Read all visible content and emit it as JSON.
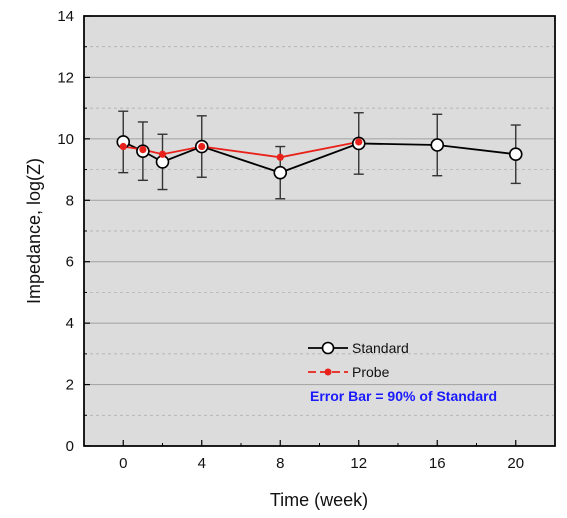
{
  "chart_data": {
    "type": "line",
    "title": "",
    "xlabel": "Time (week)",
    "ylabel": "Impedance, log(Z)",
    "xlim": [
      -2,
      22
    ],
    "ylim": [
      0,
      14
    ],
    "x_ticks": [
      0,
      4,
      8,
      12,
      16,
      20
    ],
    "y_ticks": [
      0,
      2,
      4,
      6,
      8,
      10,
      12,
      14
    ],
    "grid": true,
    "legend_position": "lower-right",
    "series": [
      {
        "name": "Standard",
        "color": "#000000",
        "marker": "open-circle",
        "x": [
          0,
          1,
          2,
          4,
          8,
          12,
          16,
          20
        ],
        "y": [
          9.9,
          9.6,
          9.25,
          9.75,
          8.9,
          9.85,
          9.8,
          9.5
        ],
        "error": [
          1.0,
          0.95,
          0.9,
          1.0,
          0.85,
          1.0,
          1.0,
          0.95
        ]
      },
      {
        "name": "Probe",
        "color": "#e8221a",
        "marker": "filled-dot",
        "x": [
          0,
          1,
          2,
          4,
          8,
          12
        ],
        "y": [
          9.75,
          9.65,
          9.5,
          9.75,
          9.4,
          9.9
        ]
      }
    ],
    "annotation": {
      "text": "Error Bar = 90% of Standard",
      "color": "#1a1aff"
    },
    "colors": {
      "plot_background": "#dcdcdc",
      "grid": "#a8a8a8"
    }
  }
}
